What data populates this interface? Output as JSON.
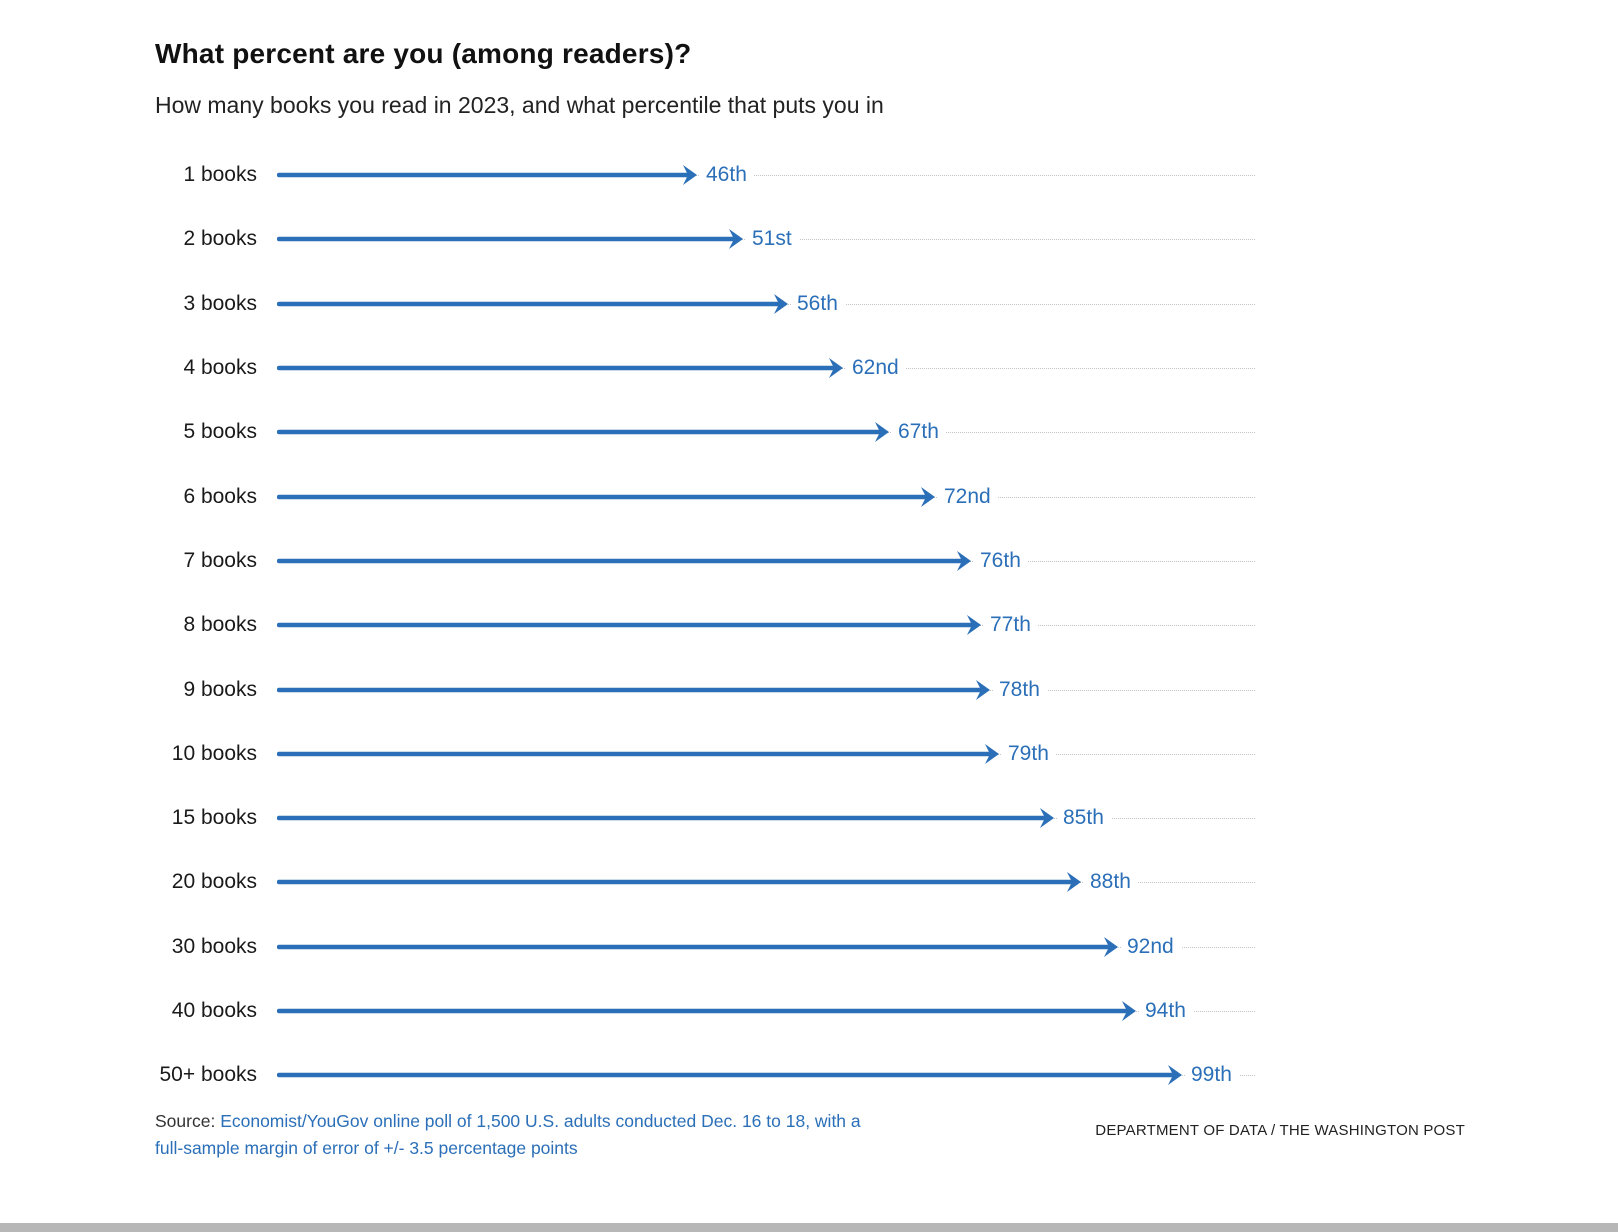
{
  "page": {
    "title": "What percent are you (among readers)?",
    "subtitle": "How many books you read in 2023, and what percentile that puts you in",
    "source_prefix": "Source: ",
    "source_link": "Economist/YouGov online poll of 1,500 U.S. adults conducted Dec. 16 to 18, with a full-sample margin of error of +/- 3.5 percentage points",
    "credit": "DEPARTMENT OF DATA / THE WASHINGTON POST"
  },
  "chart_data": {
    "type": "bar",
    "subtype": "horizontal-arrow",
    "title": "What percent are you (among readers)?",
    "subtitle": "How many books you read in 2023, and what percentile that puts you in",
    "categories": [
      "1 books",
      "2 books",
      "3 books",
      "4 books",
      "5 books",
      "6 books",
      "7 books",
      "8 books",
      "9 books",
      "10 books",
      "15 books",
      "20 books",
      "30 books",
      "40 books",
      "50+ books"
    ],
    "values": [
      46,
      51,
      56,
      62,
      67,
      72,
      76,
      77,
      78,
      79,
      85,
      88,
      92,
      94,
      99
    ],
    "value_labels": [
      "46th",
      "51st",
      "56th",
      "62nd",
      "67th",
      "72nd",
      "76th",
      "77th",
      "78th",
      "79th",
      "85th",
      "88th",
      "92nd",
      "94th",
      "99th"
    ],
    "xlabel": "",
    "ylabel": "",
    "xlim": [
      0,
      100
    ],
    "grid": "dotted-horizontal-leaders",
    "legend": "none",
    "accent_color": "#2b6fb8",
    "leader_color": "#c4c4c4"
  }
}
